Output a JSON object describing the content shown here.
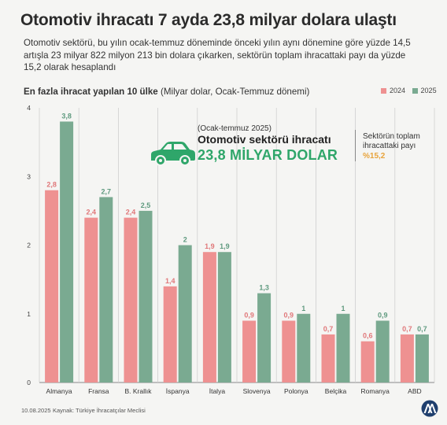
{
  "header": {
    "title": "Otomotiv ihracatı 7 ayda 23,8 milyar dolara ulaştı",
    "intro": "Otomotiv sektörü, bu yılın ocak-temmuz döneminde önceki yılın aynı dönemine göre yüzde 14,5 artışla 23 milyar 822 milyon 213 bin dolara çıkarken, sektörün toplam ihracattaki payı da yüzde 15,2 olarak hesaplandı",
    "subtitle_bold": "En fazla ihracat yapılan 10 ülke",
    "subtitle_rest": " (Milyar dolar, Ocak-Temmuz dönemi)"
  },
  "callout": {
    "period": "(Ocak-temmuz 2025)",
    "headline": "Otomotiv sektörü ihracatı",
    "value": "23,8 MİLYAR DOLAR",
    "share_label": "Sektörün toplam ihracattaki payı",
    "share_value": "%15,2"
  },
  "footer": {
    "date": "10.08.2025",
    "source": "Kaynak: Türkiye İhracatçılar Meclisi"
  },
  "colors": {
    "series_2024": "#ee9191",
    "series_2025": "#7aaa91",
    "label_2024": "#e0787a",
    "label_2025": "#5f9a7f",
    "accent_green": "#2fa66a",
    "accent_orange": "#e8a33a",
    "grid": "#cfcfcf"
  },
  "icons": {
    "car": "car-icon",
    "logo": "aa-logo-icon"
  },
  "chart_data": {
    "type": "bar",
    "categories": [
      "Almanya",
      "Fransa",
      "B. Krallık",
      "İspanya",
      "İtalya",
      "Slovenya",
      "Polonya",
      "Belçika",
      "Romanya",
      "ABD"
    ],
    "series": [
      {
        "name": "2024",
        "values": [
          2.8,
          2.4,
          2.4,
          1.4,
          1.9,
          0.9,
          0.9,
          0.7,
          0.6,
          0.7
        ],
        "labels": [
          "2,8",
          "2,4",
          "2,4",
          "1,4",
          "1,9",
          "0,9",
          "0,9",
          "0,7",
          "0,6",
          "0,7"
        ]
      },
      {
        "name": "2025",
        "values": [
          3.8,
          2.7,
          2.5,
          2.0,
          1.9,
          1.3,
          1.0,
          1.0,
          0.9,
          0.7
        ],
        "labels": [
          "3,8",
          "2,7",
          "2,5",
          "2",
          "1,9",
          "1,3",
          "1",
          "1",
          "0,9",
          "0,7"
        ]
      }
    ],
    "yticks": [
      0,
      1,
      2,
      3,
      4
    ],
    "ylim": [
      0,
      4
    ],
    "grid": "vertical-separators",
    "legend": "top-right"
  }
}
